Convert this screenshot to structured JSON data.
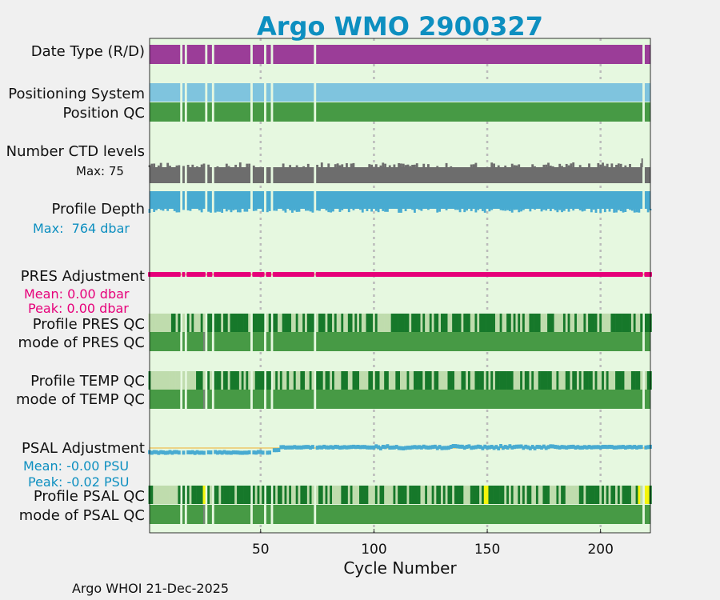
{
  "chart_data": {
    "type": "bar",
    "title": "Argo WMO 2900327",
    "xlabel": "Cycle Number",
    "xlim": [
      1,
      222
    ],
    "xticks": [
      50,
      100,
      150,
      200
    ],
    "grid": "vertical dotted at ticks",
    "footer": "Argo WHOI 21-Dec-2025",
    "missing_cycles": [
      15,
      17,
      26,
      29,
      46,
      52,
      55,
      74,
      219
    ],
    "colors": {
      "plot_bg": "#e6f8e0",
      "date_type": "#9b3d98",
      "positioning": "#7fc4de",
      "position_qc": "#479a45",
      "ctd_levels": "#6d6d6d",
      "profile_depth": "#48abd1",
      "pres_adjust": "#e6007a",
      "psal_adjust": "#48abd1",
      "zero_line": "#f0b030",
      "qc_dark": "#16782a",
      "qc_light": "#bfdcad",
      "qc_mode": "#479a45",
      "qc_yellow": "#f5f50a",
      "title": "#0d8fc0",
      "max_label": "#0d8fc0"
    },
    "rows": {
      "date_type": "Date Type (R/D)",
      "positioning_system": "Positioning System",
      "position_qc": "Position QC",
      "ctd_levels": "Number CTD levels",
      "ctd_max": "Max: 75",
      "profile_depth": "Profile Depth",
      "depth_max": "Max:  764 dbar",
      "pres_adjustment": "PRES Adjustment",
      "pres_mean": "Mean: 0.00 dbar",
      "pres_peak": "Peak: 0.00 dbar",
      "profile_pres_qc": "Profile PRES QC",
      "mode_pres_qc": "mode of PRES QC",
      "profile_temp_qc": "Profile TEMP QC",
      "mode_temp_qc": "mode of TEMP QC",
      "psal_adjustment": "PSAL Adjustment",
      "psal_mean": "Mean: -0.00 PSU",
      "psal_peak": "Peak: -0.02 PSU",
      "profile_psal_qc": "Profile PSAL QC",
      "mode_psal_qc": "mode of PSAL QC"
    },
    "psal_adjustment_values": [
      {
        "cycle_range": [
          1,
          54
        ],
        "value": -0.015
      },
      {
        "cycle_range": [
          55,
          58
        ],
        "value": -0.008
      },
      {
        "cycle_range": [
          59,
          222
        ],
        "value": 0.0
      }
    ]
  }
}
